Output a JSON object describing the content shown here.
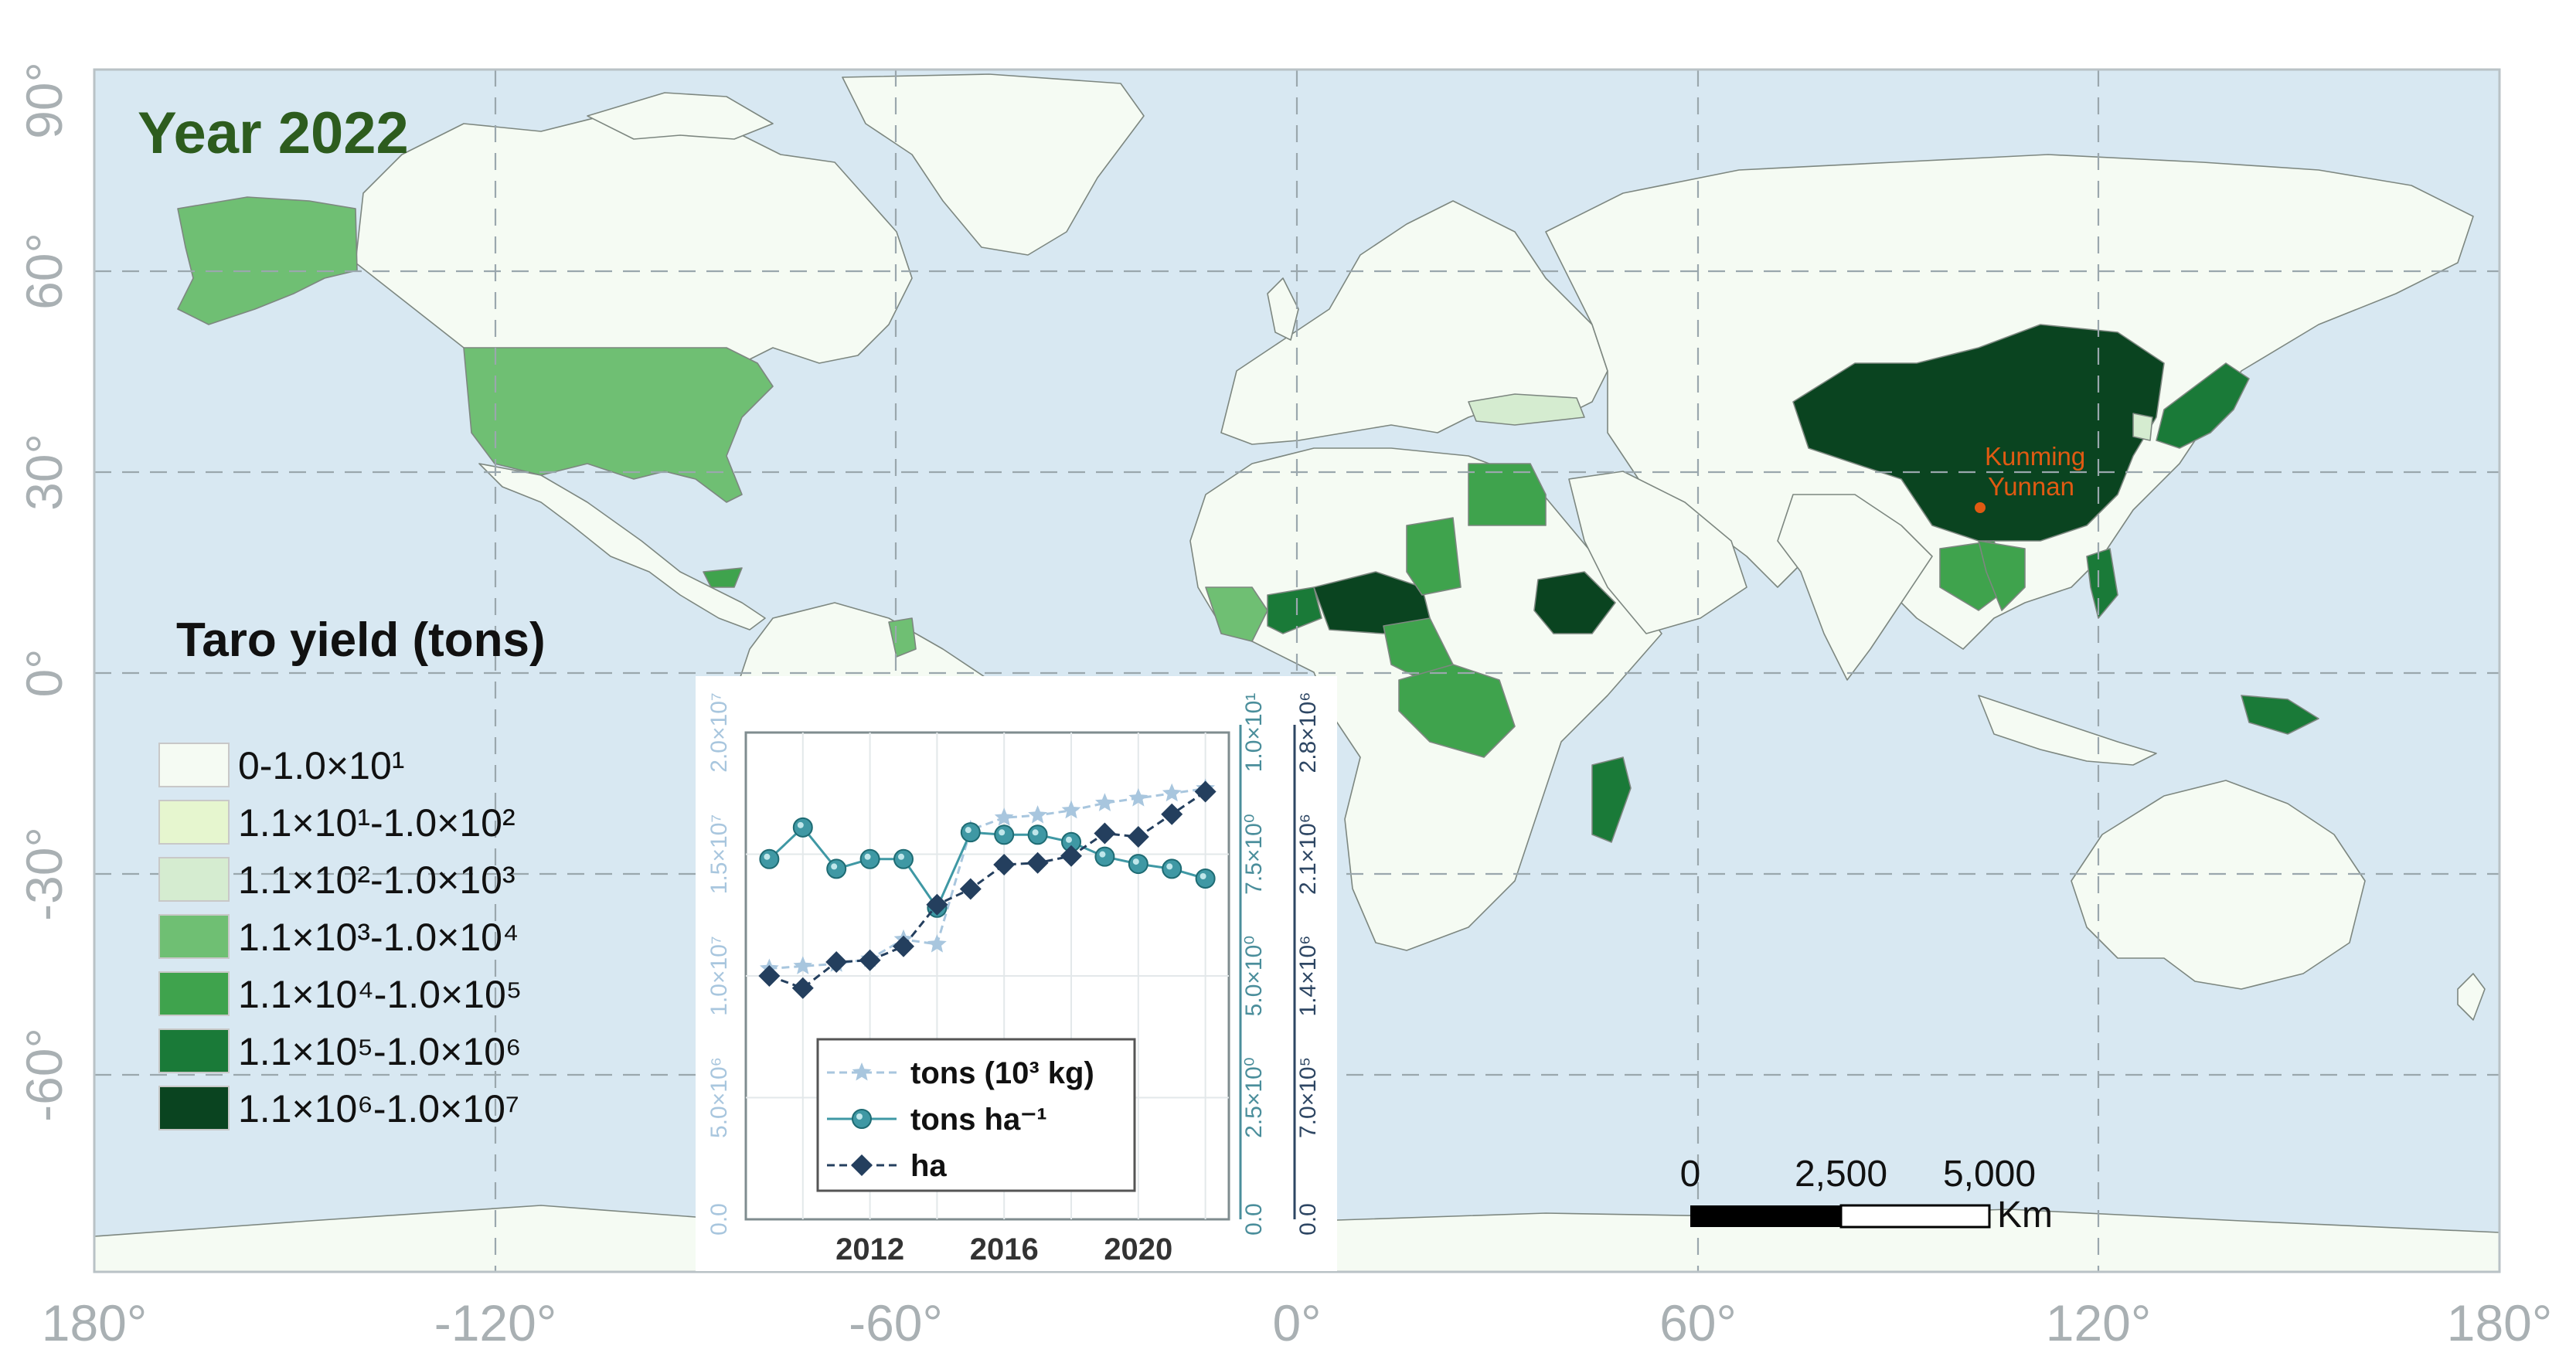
{
  "map": {
    "title": "Year 2022",
    "lon_labels": [
      "180°",
      "-120°",
      "-60°",
      "0°",
      "60°",
      "120°",
      "180°"
    ],
    "lat_labels": [
      "90°",
      "60°",
      "30°",
      "0°",
      "-30°",
      "-60°"
    ],
    "colors": {
      "ocean": "#d8e8f2",
      "class0": "#f5fbf3",
      "class1": "#e6f6cf",
      "class2": "#d5ecd0",
      "class3": "#6fbf73",
      "class4": "#3fa34d",
      "class5": "#1a7a38",
      "class6": "#0a4420"
    },
    "city": {
      "name": "Kunming",
      "region": "Yunnan"
    }
  },
  "legend": {
    "title": "Taro yield (tons)",
    "items": [
      {
        "base": "0-1.0×10",
        "sup": "1",
        "text": "0-1.0×10¹",
        "color": "#f5fbf3"
      },
      {
        "text": "1.1×10¹-1.0×10²",
        "color": "#e6f6cf"
      },
      {
        "text": "1.1×10²-1.0×10³",
        "color": "#d5ecd0"
      },
      {
        "text": "1.1×10³-1.0×10⁴",
        "color": "#6fbf73"
      },
      {
        "text": "1.1×10⁴-1.0×10⁵",
        "color": "#3fa34d"
      },
      {
        "text": "1.1×10⁵-1.0×10⁶",
        "color": "#1a7a38"
      },
      {
        "text": "1.1×10⁶-1.0×10⁷",
        "color": "#0a4420"
      }
    ]
  },
  "scalebar": {
    "ticks": [
      "0",
      "2,500",
      "5,000"
    ],
    "unit": "Km"
  },
  "chart_data": {
    "type": "line",
    "x": [
      2009,
      2010,
      2011,
      2012,
      2013,
      2014,
      2015,
      2016,
      2017,
      2018,
      2019,
      2020,
      2021,
      2022
    ],
    "x_ticks": [
      "2012",
      "2016",
      "2020"
    ],
    "series": [
      {
        "name": "tons (10³ kg)",
        "axis": "left",
        "marker": "star",
        "color": "#a8c6de",
        "values": [
          10300000,
          10400000,
          10500000,
          10700000,
          11500000,
          11300000,
          16000000,
          16500000,
          16600000,
          16800000,
          17100000,
          17300000,
          17500000,
          17700000
        ]
      },
      {
        "name": "tons ha⁻¹",
        "axis": "middle",
        "marker": "circle",
        "color": "#3f98a4",
        "values": [
          7.4,
          8.05,
          7.2,
          7.4,
          7.4,
          6.4,
          7.95,
          7.9,
          7.9,
          7.75,
          7.45,
          7.3,
          7.2,
          7.0
        ]
      },
      {
        "name": "ha",
        "axis": "right",
        "marker": "diamond",
        "color": "#243f5e",
        "values": [
          1400000,
          1330000,
          1480000,
          1490000,
          1570000,
          1810000,
          1900000,
          2040000,
          2050000,
          2090000,
          2220000,
          2200000,
          2330000,
          2460000
        ]
      }
    ],
    "axes": {
      "left": {
        "ticks": [
          "0.0",
          "5.0×10⁶",
          "1.0×10⁷",
          "1.5×10⁷",
          "2.0×10⁷"
        ],
        "range": [
          0,
          20000000
        ],
        "color": "#a8c6de"
      },
      "middle": {
        "ticks": [
          "0.0",
          "2.5×10⁰",
          "5.0×10⁰",
          "7.5×10⁰",
          "1.0×10¹"
        ],
        "range": [
          0,
          10
        ],
        "color": "#4a8e9b"
      },
      "right": {
        "ticks": [
          "0.0",
          "7.0×10⁵",
          "1.4×10⁶",
          "2.1×10⁶",
          "2.8×10⁶"
        ],
        "range": [
          0,
          2800000
        ],
        "color": "#2d4663"
      }
    },
    "grid": true,
    "legend_position": "bottom-left"
  }
}
